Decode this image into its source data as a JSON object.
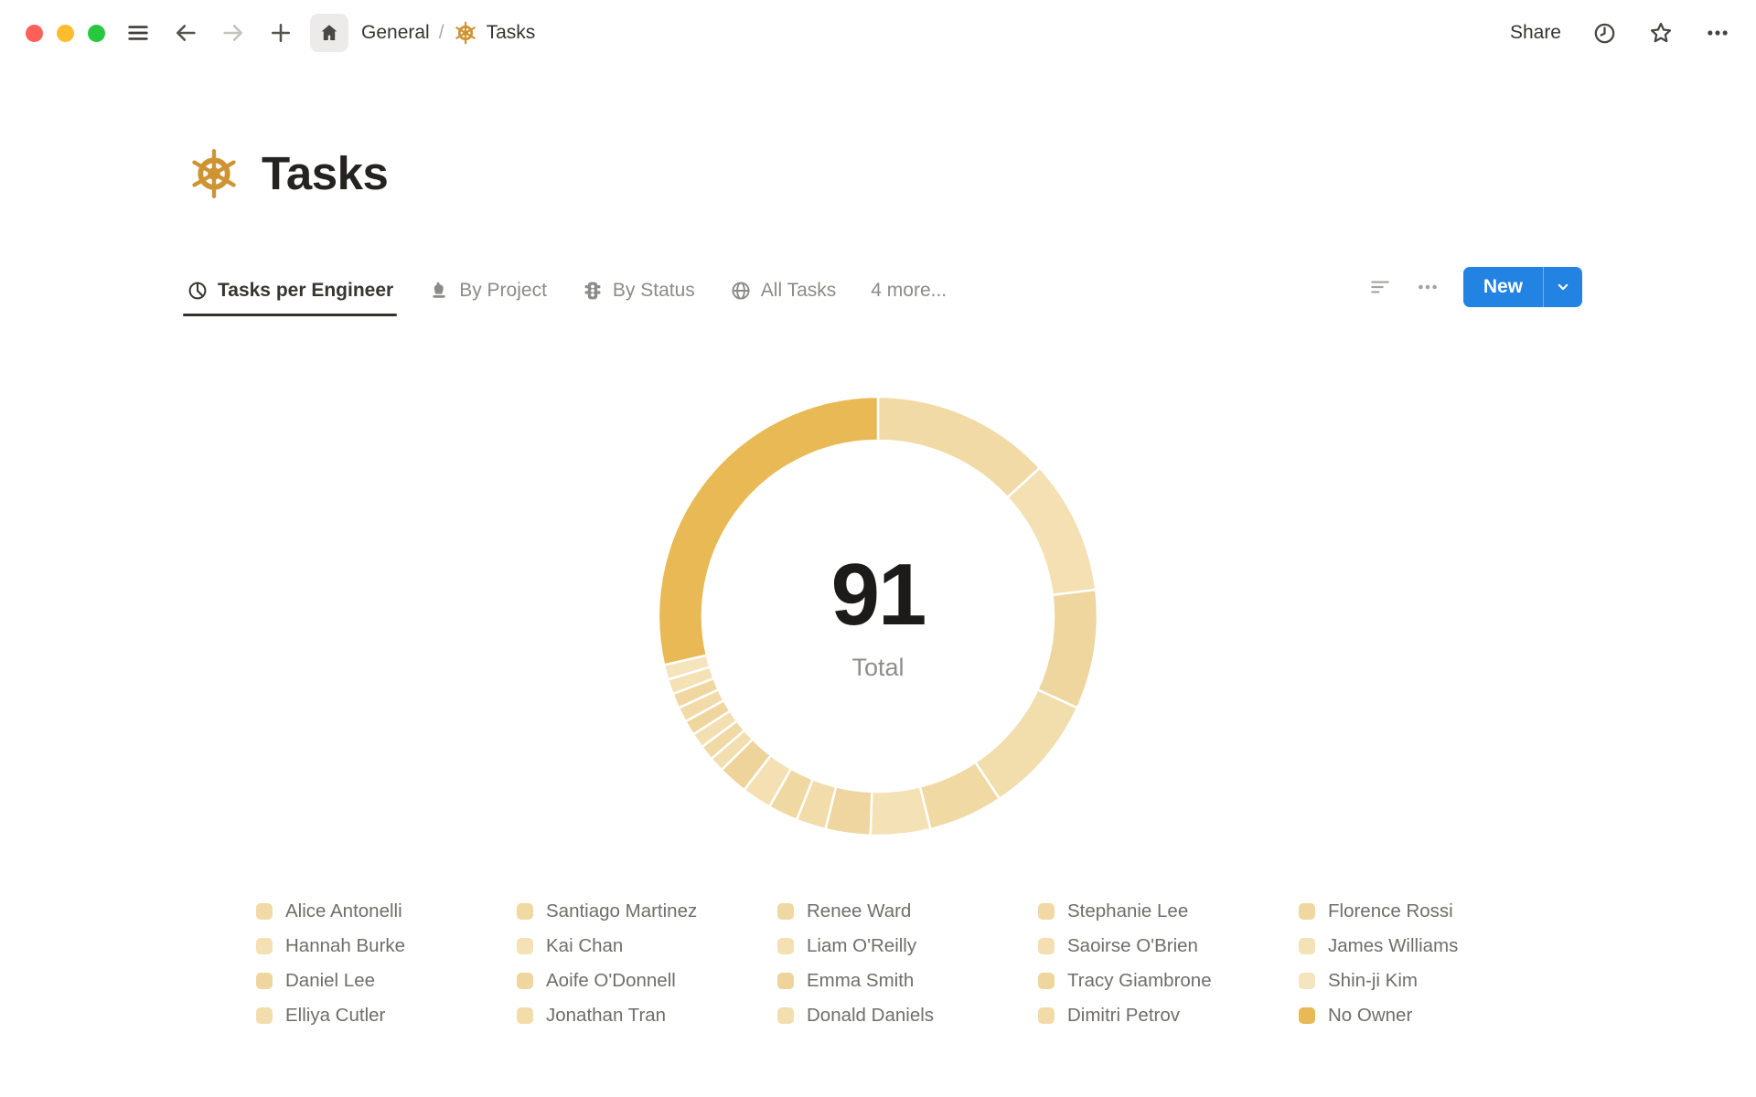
{
  "window": {
    "controls": [
      "close",
      "minimize",
      "zoom"
    ]
  },
  "topbar": {
    "breadcrumb": {
      "section": "General",
      "separator": "/",
      "page": "Tasks"
    },
    "share_label": "Share"
  },
  "header": {
    "title": "Tasks",
    "icon": "helm-icon"
  },
  "tabs": {
    "items": [
      {
        "label": "Tasks per Engineer",
        "icon": "pie-chart-icon",
        "active": true
      },
      {
        "label": "By Project",
        "icon": "pawn-icon",
        "active": false
      },
      {
        "label": "By Status",
        "icon": "traffic-light-icon",
        "active": false
      },
      {
        "label": "All Tasks",
        "icon": "globe-icon",
        "active": false
      },
      {
        "label": "4 more...",
        "icon": null,
        "active": false
      }
    ]
  },
  "toolbar": {
    "new_label": "New"
  },
  "colors": {
    "accent_blue": "#2383E2",
    "brand_gold": "#CE9434",
    "dark_segment": "#E8B954",
    "light_segment": "#F1DAA5",
    "text_primary": "#37352F",
    "text_secondary": "#8D8B87"
  },
  "chart_data": {
    "type": "pie",
    "subtype": "donut",
    "title": "Tasks per Engineer",
    "center_value": "91",
    "center_label": "Total",
    "total": 91,
    "legend_position": "bottom",
    "start_angle_deg": 0,
    "clockwise": true,
    "series": [
      {
        "name": "Alice Antonelli",
        "value": 12,
        "color": "#F1DAA5"
      },
      {
        "name": "Hannah Burke",
        "value": 9,
        "color": "#F4E0B2"
      },
      {
        "name": "Daniel Lee",
        "value": 8,
        "color": "#EFD59E"
      },
      {
        "name": "Elliya Cutler",
        "value": 8,
        "color": "#F2DDAD"
      },
      {
        "name": "Santiago Martinez",
        "value": 5,
        "color": "#F1D9A3"
      },
      {
        "name": "Kai Chan",
        "value": 4,
        "color": "#F4E1B5"
      },
      {
        "name": "Aoife O'Donnell",
        "value": 3,
        "color": "#EFD6A0"
      },
      {
        "name": "Jonathan Tran",
        "value": 2,
        "color": "#F2DCAA"
      },
      {
        "name": "Renee Ward",
        "value": 2,
        "color": "#F0D8A2"
      },
      {
        "name": "Liam O'Reilly",
        "value": 2,
        "color": "#F4E0B3"
      },
      {
        "name": "Emma Smith",
        "value": 2,
        "color": "#EED49B"
      },
      {
        "name": "Donald Daniels",
        "value": 1,
        "color": "#F2DEAE"
      },
      {
        "name": "Stephanie Lee",
        "value": 1,
        "color": "#F0D9A4"
      },
      {
        "name": "Saoirse O'Brien",
        "value": 1,
        "color": "#F3DFB1"
      },
      {
        "name": "Tracy Giambrone",
        "value": 1,
        "color": "#EFD69F"
      },
      {
        "name": "Dimitri Petrov",
        "value": 1,
        "color": "#F2DBA9"
      },
      {
        "name": "Florence Rossi",
        "value": 1,
        "color": "#F0D7A1"
      },
      {
        "name": "James Williams",
        "value": 1,
        "color": "#F4E1B4"
      },
      {
        "name": "Shin-ji Kim",
        "value": 1,
        "color": "#F5E4BC"
      },
      {
        "name": "No Owner",
        "value": 26,
        "color": "#E8B954"
      }
    ]
  }
}
